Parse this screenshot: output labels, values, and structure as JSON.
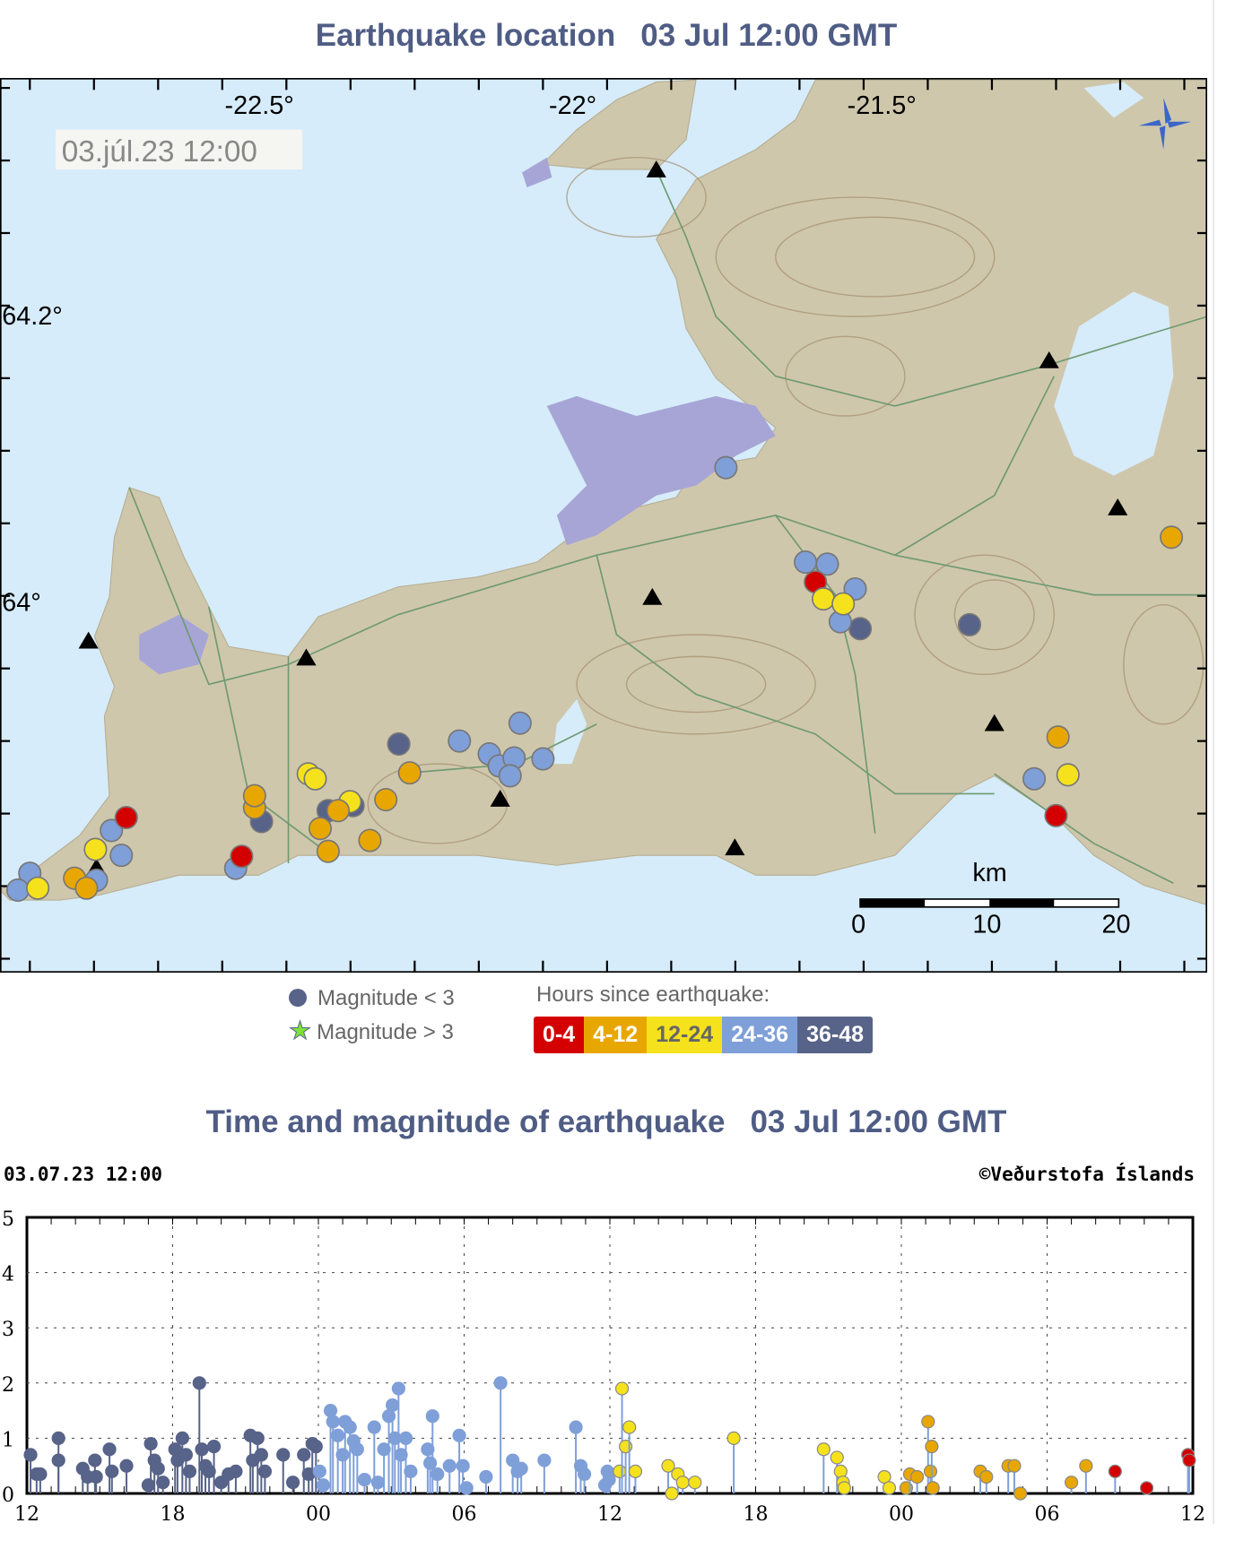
{
  "map_title": {
    "label": "Earthquake location",
    "time": "03 Jul 12:00 GMT"
  },
  "map": {
    "timestamp_box": "03.júl.23  12:00",
    "lon_labels": [
      "-22.5°",
      "-22°",
      "-21.5°"
    ],
    "lat_labels": [
      "64.2°",
      "64°"
    ],
    "scale_unit": "km",
    "scale_ticks": [
      "0",
      "10",
      "20"
    ],
    "colors": {
      "sea": "#d6ecfa",
      "land": "#cfc7ac",
      "urban": "#a7a5d6",
      "roads": "#6f9a72",
      "contours": "#a58f70"
    }
  },
  "legend": {
    "mag_small": "Magnitude < 3",
    "mag_large": "Magnitude > 3",
    "hours_title": "Hours since earthquake:",
    "bins": [
      {
        "label": "0-4",
        "color": "#d40000",
        "text": "#ffffff"
      },
      {
        "label": "4-12",
        "color": "#e8a700",
        "text": "#ffffff"
      },
      {
        "label": "12-24",
        "color": "#f5e21c",
        "text": "#666666"
      },
      {
        "label": "24-36",
        "color": "#7f9fd8",
        "text": "#ffffff"
      },
      {
        "label": "36-48",
        "color": "#576388",
        "text": "#ffffff"
      }
    ]
  },
  "chart_title": {
    "label": "Time and magnitude of earthquake",
    "time": "03 Jul 12:00 GMT"
  },
  "chart_header": {
    "left": "03.07.23 12:00",
    "right": "©Veðurstofa Íslands"
  },
  "chart_data": {
    "type": "scatter",
    "subtype": "stem",
    "x_range": [
      "01.07.23 12:00",
      "03.07.23 12:00"
    ],
    "xticks": [
      "12",
      "18",
      "00",
      "06",
      "12",
      "18",
      "00",
      "06",
      "12"
    ],
    "yticks": [
      "0",
      "1",
      "2",
      "3",
      "4",
      "5"
    ],
    "ylim": [
      0,
      5
    ],
    "grid": true,
    "points": [
      [
        "01 12:09",
        0.7
      ],
      [
        "01 12:24",
        0.35
      ],
      [
        "01 12:33",
        0.35
      ],
      [
        "01 13:18",
        1.0
      ],
      [
        "01 13:18",
        0.6
      ],
      [
        "01 14:18",
        0.45
      ],
      [
        "01 14:30",
        0.3
      ],
      [
        "01 14:48",
        0.6
      ],
      [
        "01 14:51",
        0.3
      ],
      [
        "01 15:24",
        0.8
      ],
      [
        "01 15:30",
        0.4
      ],
      [
        "01 16:06",
        0.5
      ],
      [
        "01 17:00",
        0.15
      ],
      [
        "01 17:06",
        0.9
      ],
      [
        "01 17:15",
        0.6
      ],
      [
        "01 17:24",
        0.45
      ],
      [
        "01 17:36",
        0.2
      ],
      [
        "01 18:06",
        0.8
      ],
      [
        "01 18:12",
        0.6
      ],
      [
        "01 18:24",
        1.0
      ],
      [
        "01 18:33",
        0.7
      ],
      [
        "01 18:42",
        0.4
      ],
      [
        "01 19:06",
        2.0
      ],
      [
        "01 19:12",
        0.8
      ],
      [
        "01 19:21",
        0.5
      ],
      [
        "01 19:30",
        0.4
      ],
      [
        "01 19:42",
        0.85
      ],
      [
        "01 20:00",
        0.2
      ],
      [
        "01 20:18",
        0.35
      ],
      [
        "01 20:36",
        0.4
      ],
      [
        "01 21:12",
        1.05
      ],
      [
        "01 21:18",
        0.6
      ],
      [
        "01 21:30",
        1.0
      ],
      [
        "01 21:39",
        0.7
      ],
      [
        "01 21:48",
        0.4
      ],
      [
        "01 22:33",
        0.7
      ],
      [
        "01 22:57",
        0.2
      ],
      [
        "01 23:24",
        0.7
      ],
      [
        "01 23:36",
        0.35
      ],
      [
        "01 23:45",
        0.9
      ],
      [
        "01 23:54",
        0.85
      ],
      [
        "02 00:03",
        0.4
      ],
      [
        "02 00:12",
        0.15
      ],
      [
        "02 00:30",
        1.5
      ],
      [
        "02 00:36",
        1.3
      ],
      [
        "02 00:48",
        1.05
      ],
      [
        "02 01:00",
        0.7
      ],
      [
        "02 01:06",
        1.3
      ],
      [
        "02 01:18",
        1.2
      ],
      [
        "02 01:27",
        0.95
      ],
      [
        "02 01:36",
        0.8
      ],
      [
        "02 01:54",
        0.25
      ],
      [
        "02 02:18",
        1.2
      ],
      [
        "02 02:27",
        0.2
      ],
      [
        "02 02:42",
        0.8
      ],
      [
        "02 02:54",
        1.4
      ],
      [
        "02 03:03",
        1.6
      ],
      [
        "02 03:09",
        1.0
      ],
      [
        "02 03:18",
        1.9
      ],
      [
        "02 03:24",
        0.7
      ],
      [
        "02 03:36",
        1.0
      ],
      [
        "02 03:48",
        0.4
      ],
      [
        "02 04:30",
        0.8
      ],
      [
        "02 04:36",
        0.55
      ],
      [
        "02 04:42",
        1.4
      ],
      [
        "02 04:54",
        0.35
      ],
      [
        "02 05:24",
        0.5
      ],
      [
        "02 05:48",
        1.05
      ],
      [
        "02 05:57",
        0.5
      ],
      [
        "02 06:06",
        0.1
      ],
      [
        "02 06:54",
        0.3
      ],
      [
        "02 07:30",
        2.0
      ],
      [
        "02 08:00",
        0.6
      ],
      [
        "02 08:12",
        0.4
      ],
      [
        "02 08:21",
        0.45
      ],
      [
        "02 09:18",
        0.6
      ],
      [
        "02 10:36",
        1.2
      ],
      [
        "02 10:48",
        0.5
      ],
      [
        "02 10:57",
        0.35
      ],
      [
        "02 11:48",
        0.15
      ],
      [
        "02 11:54",
        0.4
      ],
      [
        "02 11:58",
        0.25
      ],
      [
        "02 12:24",
        0.4
      ],
      [
        "02 12:30",
        1.9
      ],
      [
        "02 12:39",
        0.85
      ],
      [
        "02 12:48",
        1.2
      ],
      [
        "02 13:03",
        0.4
      ],
      [
        "02 14:24",
        0.5
      ],
      [
        "02 14:33",
        0.0
      ],
      [
        "02 14:48",
        0.35
      ],
      [
        "02 15:00",
        0.2
      ],
      [
        "02 15:30",
        0.2
      ],
      [
        "02 17:06",
        1.0
      ],
      [
        "02 20:48",
        0.8
      ],
      [
        "02 21:21",
        0.65
      ],
      [
        "02 21:30",
        0.4
      ],
      [
        "02 21:36",
        0.2
      ],
      [
        "02 21:39",
        0.1
      ],
      [
        "02 23:18",
        0.3
      ],
      [
        "02 23:30",
        0.1
      ],
      [
        "03 00:12",
        0.1
      ],
      [
        "03 00:21",
        0.35
      ],
      [
        "03 00:39",
        0.3
      ],
      [
        "03 01:06",
        1.3
      ],
      [
        "03 01:12",
        0.4
      ],
      [
        "03 01:15",
        0.85
      ],
      [
        "03 01:18",
        0.1
      ],
      [
        "03 03:15",
        0.4
      ],
      [
        "03 03:30",
        0.3
      ],
      [
        "03 04:24",
        0.5
      ],
      [
        "03 04:39",
        0.5
      ],
      [
        "03 04:54",
        0.0
      ],
      [
        "03 07:00",
        0.2
      ],
      [
        "03 07:36",
        0.5
      ],
      [
        "03 08:48",
        0.4
      ],
      [
        "03 10:06",
        0.1
      ],
      [
        "03 11:48",
        0.7
      ],
      [
        "03 11:51",
        0.6
      ]
    ]
  }
}
